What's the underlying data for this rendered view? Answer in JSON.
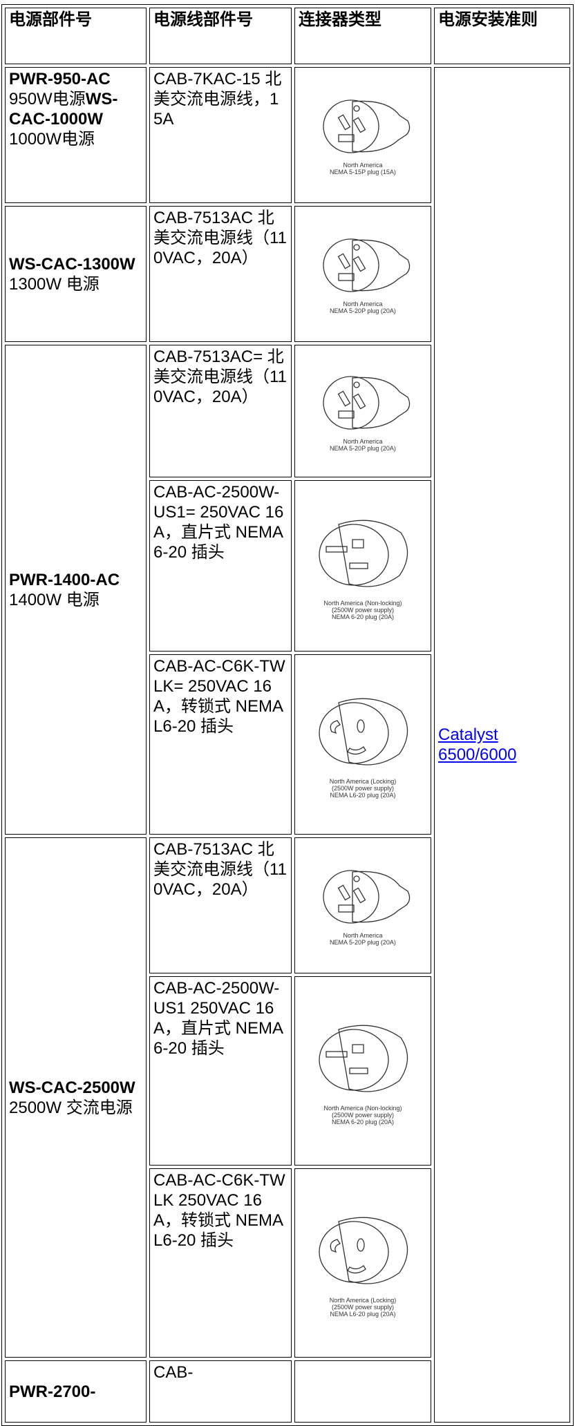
{
  "table": {
    "header": [
      "电源部件号",
      "电源线部件号",
      "连接器类型",
      "电源安装准则"
    ],
    "groups": [
      {
        "parts": [
          {
            "strong": "PWR-950-AC",
            "text": "950W电源"
          },
          {
            "strong": "WS-CAC-1000W",
            "text": "1000W电源"
          }
        ],
        "cables": [
          {
            "text": "CAB-7KAC-15 北美交流电源线，15A",
            "plug": [
              "North America",
              "NEMA 5-15P plug (15A)"
            ]
          }
        ]
      },
      {
        "parts": [
          {
            "strong": "WS-CAC-1300W",
            "text": "1300W 电源"
          }
        ],
        "cables": [
          {
            "text": "CAB-7513AC 北美交流电源线（110VAC，20A）",
            "plug": [
              "North America",
              "NEMA 5-20P plug (20A)"
            ]
          }
        ]
      },
      {
        "parts": [
          {
            "strong": "PWR-1400-AC",
            "text": "1400W 电源"
          }
        ],
        "cables": [
          {
            "text": "CAB-7513AC= 北美交流电源线（110VAC，20A）",
            "plug": [
              "North America",
              "NEMA 5-20P plug (20A)"
            ]
          },
          {
            "text": "CAB-AC-2500W-US1= 250VAC 16A，直片式 NEMA 6-20 插头",
            "plug": [
              "North America (Non-locking)",
              "(2500W power supply)",
              "NEMA 6-20 plug (20A)"
            ]
          },
          {
            "text": "CAB-AC-C6K-TWLK= 250VAC 16A，转锁式 NEMA L6-20 插头",
            "plug": [
              "North America (Locking)",
              "(2500W power supply)",
              "NEMA L6-20 plug (20A)"
            ]
          }
        ]
      },
      {
        "parts": [
          {
            "strong": "WS-CAC-2500W",
            "text": "2500W 交流电源"
          }
        ],
        "cables": [
          {
            "text": "CAB-7513AC 北美交流电源线（110VAC，20A）",
            "plug": [
              "North America",
              "NEMA 5-20P plug (20A)"
            ]
          },
          {
            "text": "CAB-AC-2500W-US1 250VAC 16A，直片式 NEMA 6-20 插头",
            "plug": [
              "North America (Non-locking)",
              "(2500W power supply)",
              "NEMA 6-20 plug (20A)"
            ]
          },
          {
            "text": "CAB-AC-C6K-TWLK 250VAC 16A，转锁式 NEMA L6-20 插头",
            "plug": [
              "North America (Locking)",
              "(2500W power supply)",
              "NEMA L6-20 plug (20A)"
            ]
          }
        ]
      },
      {
        "parts": [
          {
            "strong": "PWR-2700-"
          }
        ],
        "cables": [
          {
            "text": "CAB-"
          }
        ]
      }
    ],
    "guide": "Catalyst 6500/6000"
  }
}
